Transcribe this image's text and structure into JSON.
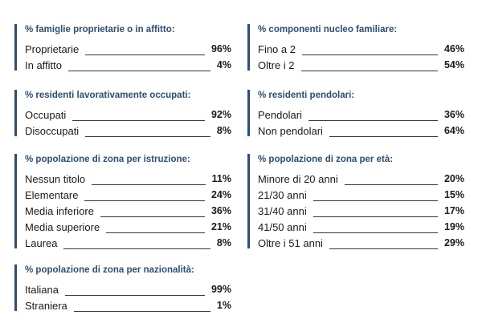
{
  "sections": {
    "famiglie": {
      "title": "% famiglie proprietarie o in affitto:",
      "rows": [
        {
          "label": "Proprietarie",
          "value": "96%"
        },
        {
          "label": "In affitto",
          "value": "4%"
        }
      ]
    },
    "componenti": {
      "title": "% componenti nucleo familiare:",
      "rows": [
        {
          "label": "Fino a 2",
          "value": "46%"
        },
        {
          "label": "Oltre i 2",
          "value": "54%"
        }
      ]
    },
    "occupati": {
      "title": "% residenti lavorativamente occupati:",
      "rows": [
        {
          "label": "Occupati",
          "value": "92%"
        },
        {
          "label": "Disoccupati",
          "value": "8%"
        }
      ]
    },
    "pendolari": {
      "title": "% residenti pendolari:",
      "rows": [
        {
          "label": "Pendolari",
          "value": "36%"
        },
        {
          "label": "Non pendolari",
          "value": "64%"
        }
      ]
    },
    "istruzione": {
      "title": "% popolazione di zona per istruzione:",
      "rows": [
        {
          "label": "Nessun titolo",
          "value": "11%"
        },
        {
          "label": "Elementare",
          "value": "24%"
        },
        {
          "label": "Media inferiore",
          "value": "36%"
        },
        {
          "label": "Media superiore",
          "value": "21%"
        },
        {
          "label": "Laurea",
          "value": "8%"
        }
      ]
    },
    "eta": {
      "title": "% popolazione di zona per età:",
      "rows": [
        {
          "label": "Minore di 20 anni",
          "value": "20%"
        },
        {
          "label": "21/30 anni",
          "value": "15%"
        },
        {
          "label": "31/40 anni",
          "value": "17%"
        },
        {
          "label": "41/50 anni",
          "value": "19%"
        },
        {
          "label": "Oltre i 51 anni",
          "value": "29%"
        }
      ]
    },
    "nazionalita": {
      "title": "% popolazione di zona per nazionalità:",
      "rows": [
        {
          "label": "Italiana",
          "value": "99%"
        },
        {
          "label": "Straniera",
          "value": "1%"
        }
      ]
    }
  }
}
